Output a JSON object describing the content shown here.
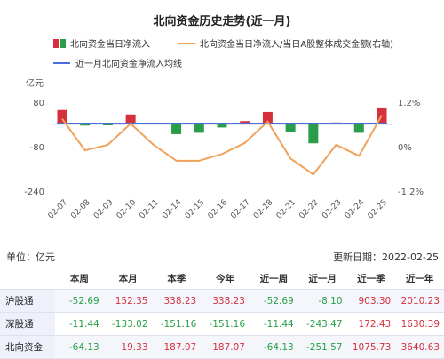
{
  "chart_data": {
    "type": "bar+line",
    "title": "北向资金历史走势(近一月)",
    "legend": [
      {
        "name": "北向资金当日净流入",
        "color_pos": "#d7303d",
        "color_neg": "#2a9d4b"
      },
      {
        "name": "北向资金当日净流入/当日A股整体成交金额(右轴)",
        "color": "#f0a25a"
      },
      {
        "name": "近一月北向资金净流入均线",
        "color": "#4a6fdc"
      }
    ],
    "left_axis": {
      "label": "亿元",
      "ticks": [
        "80",
        "-80",
        "-240"
      ],
      "min": -240,
      "max": 80
    },
    "right_axis": {
      "ticks": [
        "1.2%",
        "0%",
        "-1.2%"
      ],
      "min": -1.2,
      "max": 1.2
    },
    "categories": [
      "02-07",
      "02-08",
      "02-09",
      "02-10",
      "02-11",
      "02-14",
      "02-15",
      "02-16",
      "02-17",
      "02-18",
      "02-21",
      "02-22",
      "02-23",
      "02-24",
      "02-25"
    ],
    "bar_values": [
      52,
      -4,
      -2,
      36,
      6,
      -35,
      -30,
      -11,
      12,
      45,
      -28,
      -68,
      7,
      -30,
      61
    ],
    "ratio_values": [
      0.75,
      -0.1,
      0.05,
      0.62,
      0.05,
      -0.38,
      -0.38,
      -0.2,
      0.1,
      0.68,
      -0.32,
      -0.75,
      0.05,
      -0.25,
      0.85
    ],
    "average_value": 0.6
  },
  "table": {
    "unit_label": "单位：亿元",
    "updated_label": "更新日期：2022-02-25",
    "headers": [
      "",
      "本周",
      "本月",
      "本季",
      "今年",
      "近一周",
      "近一月",
      "近一季",
      "近一年"
    ],
    "rows": [
      {
        "label": "沪股通",
        "values": [
          "-52.69",
          "152.35",
          "338.23",
          "338.23",
          "-52.69",
          "-8.10",
          "903.30",
          "2010.23"
        ]
      },
      {
        "label": "深股通",
        "values": [
          "-11.44",
          "-133.02",
          "-151.16",
          "-151.16",
          "-11.44",
          "-243.47",
          "172.43",
          "1630.39"
        ]
      },
      {
        "label": "北向资金",
        "values": [
          "-64.13",
          "19.33",
          "187.07",
          "187.07",
          "-64.13",
          "-251.57",
          "1075.73",
          "3640.63"
        ]
      }
    ]
  }
}
